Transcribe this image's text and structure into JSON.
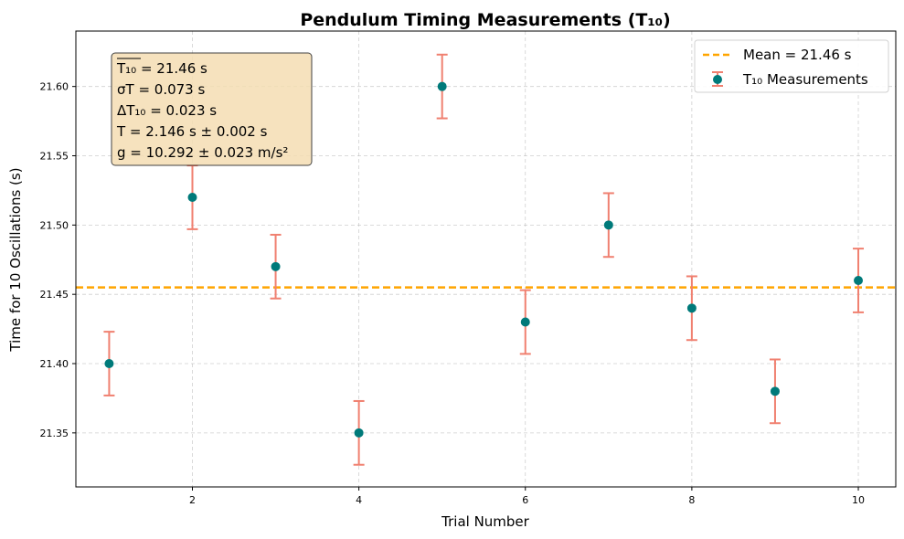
{
  "chart_data": {
    "type": "scatter",
    "title": "Pendulum Timing Measurements (T₁₀)",
    "xlabel": "Trial Number",
    "ylabel": "Time for 10 Oscillations (s)",
    "xlim": [
      0.6,
      10.45
    ],
    "ylim": [
      21.311,
      21.64
    ],
    "xticks": [
      2,
      4,
      6,
      8,
      10
    ],
    "yticks": [
      21.35,
      21.4,
      21.45,
      21.5,
      21.55,
      21.6
    ],
    "ytick_labels": [
      "21.35",
      "21.40",
      "21.45",
      "21.50",
      "21.55",
      "21.60"
    ],
    "grid": true,
    "legend_position": "top-right",
    "series": [
      {
        "name": "T₁₀ Measurements",
        "color": "#007a7a",
        "error_color": "#f08070",
        "x": [
          1,
          2,
          3,
          4,
          5,
          6,
          7,
          8,
          9,
          10
        ],
        "y": [
          21.4,
          21.52,
          21.47,
          21.35,
          21.6,
          21.43,
          21.5,
          21.44,
          21.38,
          21.46
        ],
        "yerr": 0.023
      }
    ],
    "mean_line": {
      "label": "Mean = 21.46 s",
      "value": 21.455,
      "color": "#ffa500"
    },
    "annotation_box": {
      "lines": [
        "T₁₀ = 21.46 s",
        "σT = 0.073 s",
        "ΔT₁₀ = 0.023 s",
        "T = 2.146 s ± 0.002 s",
        "g = 10.292 ± 0.023 m/s²"
      ],
      "background": "#f5deb3"
    }
  }
}
